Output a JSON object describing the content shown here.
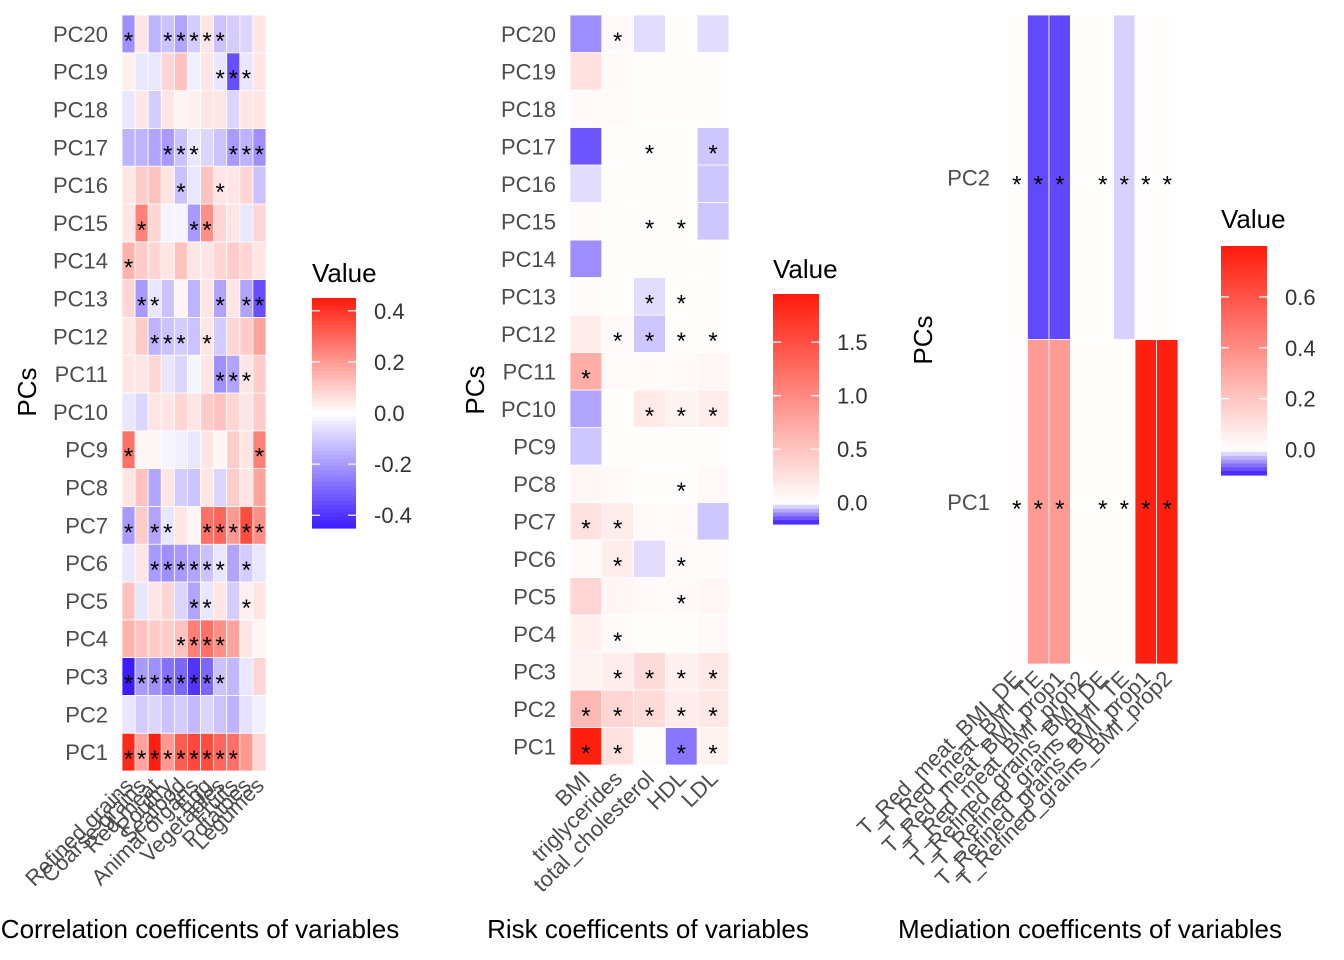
{
  "colors": {
    "low": "#3b1bff",
    "mid": "#ffffff",
    "high": "#ff1a0a",
    "tile_border": "#ffffff",
    "star": "#000000"
  },
  "chart_data": [
    {
      "type": "heatmap",
      "title": "",
      "xlabel": "Correlation coefficents of variables",
      "ylabel": "PCs",
      "x": [
        "Refined grains",
        "Coarse grains",
        "Red meat",
        "Poultry",
        "Seafood",
        "Animal organs",
        "Egg",
        "Vegetables",
        "Fruits",
        "Potatoes",
        "Legumes"
      ],
      "y": [
        "PC1",
        "PC2",
        "PC3",
        "PC4",
        "PC5",
        "PC6",
        "PC7",
        "PC8",
        "PC9",
        "PC10",
        "PC11",
        "PC12",
        "PC13",
        "PC14",
        "PC15",
        "PC16",
        "PC17",
        "PC18",
        "PC19",
        "PC20"
      ],
      "values": [
        [
          0.42,
          0.18,
          0.44,
          0.2,
          0.32,
          0.36,
          0.35,
          0.3,
          0.28,
          0.2,
          0.08
        ],
        [
          -0.05,
          -0.1,
          -0.08,
          -0.12,
          -0.1,
          -0.14,
          -0.08,
          -0.12,
          -0.15,
          -0.06,
          -0.03
        ],
        [
          -0.45,
          -0.2,
          -0.22,
          -0.28,
          -0.3,
          -0.4,
          -0.3,
          -0.12,
          -0.14,
          -0.05,
          0.08
        ],
        [
          0.15,
          0.12,
          0.1,
          0.1,
          0.12,
          0.25,
          0.28,
          0.22,
          0.18,
          0.05,
          0.02
        ],
        [
          0.12,
          -0.05,
          0.05,
          0.08,
          -0.08,
          -0.18,
          -0.05,
          0.05,
          -0.1,
          0.03,
          0.05
        ],
        [
          -0.05,
          0.05,
          -0.2,
          -0.22,
          -0.2,
          -0.18,
          -0.12,
          -0.05,
          -0.18,
          -0.1,
          -0.05
        ],
        [
          -0.2,
          0.1,
          -0.18,
          -0.05,
          0.05,
          0.02,
          0.28,
          0.3,
          0.2,
          0.35,
          0.22
        ],
        [
          0.05,
          0.12,
          -0.18,
          0.05,
          -0.1,
          -0.12,
          0.05,
          -0.08,
          0.1,
          0.05,
          0.18
        ],
        [
          0.28,
          0.02,
          0.02,
          -0.02,
          -0.03,
          -0.05,
          0.05,
          0.02,
          0.1,
          0.05,
          0.25
        ],
        [
          -0.05,
          -0.08,
          0.05,
          0.05,
          0.08,
          0.05,
          0.1,
          0.12,
          0.08,
          0.05,
          0.1
        ],
        [
          0.05,
          0.05,
          0.08,
          -0.05,
          -0.08,
          -0.02,
          0.05,
          -0.22,
          -0.18,
          0.05,
          0.1
        ],
        [
          0.05,
          0.1,
          -0.15,
          -0.12,
          -0.1,
          -0.12,
          0.05,
          -0.1,
          0.08,
          0.1,
          0.18
        ],
        [
          0.08,
          -0.2,
          -0.05,
          -0.12,
          0.02,
          -0.15,
          0.05,
          -0.18,
          0.05,
          -0.18,
          -0.35
        ],
        [
          0.15,
          0.1,
          0.08,
          0.05,
          0.12,
          0.05,
          0.05,
          0.08,
          0.1,
          0.08,
          0.05
        ],
        [
          0.05,
          0.25,
          0.08,
          -0.02,
          -0.02,
          -0.2,
          0.22,
          0.08,
          0.05,
          -0.05,
          0.08
        ],
        [
          0.05,
          0.1,
          0.12,
          0.05,
          -0.12,
          -0.05,
          0.12,
          0.05,
          0.05,
          0.08,
          -0.12
        ],
        [
          -0.15,
          -0.15,
          -0.18,
          -0.2,
          -0.12,
          -0.05,
          -0.08,
          -0.12,
          -0.2,
          -0.15,
          -0.22
        ],
        [
          -0.05,
          0.05,
          -0.1,
          0.05,
          0.02,
          0.03,
          0.05,
          0.05,
          -0.08,
          0.05,
          0.05
        ],
        [
          0.03,
          -0.05,
          -0.05,
          0.08,
          0.12,
          -0.03,
          0.05,
          -0.05,
          -0.35,
          -0.05,
          0.05
        ],
        [
          -0.22,
          0.05,
          -0.15,
          -0.12,
          -0.18,
          -0.1,
          0.05,
          -0.12,
          -0.1,
          -0.08,
          0.05
        ]
      ],
      "annotations": [
        [
          "*",
          "*",
          "*",
          "*",
          "*",
          "*",
          "*",
          "*",
          "*",
          "",
          ""
        ],
        [
          "",
          "",
          "",
          "",
          "",
          "",
          "",
          "",
          "",
          "",
          ""
        ],
        [
          "*",
          "*",
          "*",
          "*",
          "*",
          "*",
          "*",
          "*",
          "",
          "",
          ""
        ],
        [
          "",
          "",
          "",
          "",
          "*",
          "*",
          "*",
          "*",
          "",
          "",
          ""
        ],
        [
          "",
          "",
          "",
          "",
          "",
          "*",
          "*",
          "",
          "",
          "*",
          ""
        ],
        [
          "",
          "",
          "*",
          "*",
          "*",
          "*",
          "*",
          "*",
          "",
          "*",
          ""
        ],
        [
          "*",
          "",
          "*",
          "*",
          "",
          "",
          "*",
          "*",
          "*",
          "*",
          "*"
        ],
        [
          "",
          "",
          "",
          "",
          "",
          "",
          "",
          "",
          "",
          "",
          ""
        ],
        [
          "*",
          "",
          "",
          "",
          "",
          "",
          "",
          "",
          "",
          "",
          "*"
        ],
        [
          "",
          "",
          "",
          "",
          "",
          "",
          "",
          "",
          "",
          "",
          ""
        ],
        [
          "",
          "",
          "",
          "",
          "",
          "",
          "",
          "*",
          "*",
          "*",
          ""
        ],
        [
          "",
          "",
          "*",
          "*",
          "*",
          "",
          "*",
          "",
          "",
          "",
          ""
        ],
        [
          "",
          "*",
          "*",
          "",
          "",
          "",
          "",
          "*",
          "",
          "*",
          "*"
        ],
        [
          "*",
          "",
          "",
          "",
          "",
          "",
          "",
          "",
          "",
          "",
          ""
        ],
        [
          "",
          "*",
          "",
          "",
          "",
          "*",
          "*",
          "",
          "",
          "",
          ""
        ],
        [
          "",
          "",
          "",
          "",
          "*",
          "",
          "",
          "*",
          "",
          "",
          ""
        ],
        [
          "",
          "",
          "",
          "*",
          "*",
          "*",
          "",
          "",
          "*",
          "*",
          "*"
        ],
        [
          "",
          "",
          "",
          "",
          "",
          "",
          "",
          "",
          "",
          "",
          ""
        ],
        [
          "",
          "",
          "",
          "",
          "",
          "",
          "",
          "*",
          "*",
          "*",
          ""
        ],
        [
          "*",
          "",
          "",
          "*",
          "*",
          "*",
          "*",
          "*",
          "",
          "",
          ""
        ]
      ],
      "legend": {
        "title": "Value",
        "ticks": [
          0.4,
          0.2,
          0.0,
          -0.2,
          -0.4
        ],
        "tick_labels": [
          "0.4",
          "0.2",
          "0.0",
          "-0.2",
          "-0.4"
        ],
        "range": [
          -0.45,
          0.45
        ]
      }
    },
    {
      "type": "heatmap",
      "title": "",
      "xlabel": "Risk coefficents of variables",
      "ylabel": "PCs",
      "x": [
        "BMI",
        "triglycerides",
        "total_cholesterol",
        "HDL",
        "LDL"
      ],
      "y": [
        "PC1",
        "PC2",
        "PC3",
        "PC4",
        "PC5",
        "PC6",
        "PC7",
        "PC8",
        "PC9",
        "PC10",
        "PC11",
        "PC12",
        "PC13",
        "PC14",
        "PC15",
        "PC16",
        "PC17",
        "PC18",
        "PC19",
        "PC20"
      ],
      "values": [
        [
          1.9,
          0.25,
          0.02,
          -0.12,
          0.1
        ],
        [
          0.6,
          0.35,
          0.3,
          0.15,
          0.2
        ],
        [
          0.1,
          0.15,
          0.3,
          0.12,
          0.2
        ],
        [
          0.12,
          0.05,
          0.02,
          0.02,
          0.05
        ],
        [
          0.35,
          0.08,
          0.05,
          0.05,
          0.08
        ],
        [
          0.05,
          0.15,
          -0.03,
          0.05,
          0.03
        ],
        [
          0.25,
          0.15,
          0.05,
          0.05,
          -0.05
        ],
        [
          0.08,
          0.05,
          0.02,
          0.02,
          0.05
        ],
        [
          -0.05,
          0.02,
          0.02,
          0.02,
          0.02
        ],
        [
          -0.08,
          0.02,
          0.18,
          0.1,
          0.15
        ],
        [
          0.7,
          0.05,
          0.05,
          0.05,
          0.08
        ],
        [
          0.15,
          0.05,
          -0.05,
          0.02,
          0.02
        ],
        [
          0.03,
          0.02,
          -0.03,
          0.02,
          0.02
        ],
        [
          -0.1,
          0.02,
          0.02,
          0.02,
          0.02
        ],
        [
          0.03,
          0.02,
          0.02,
          0.02,
          -0.05
        ],
        [
          -0.03,
          0.02,
          0.02,
          0.02,
          -0.05
        ],
        [
          -0.15,
          0.02,
          0.02,
          0.02,
          -0.05
        ],
        [
          0.05,
          0.03,
          0.02,
          0.02,
          0.02
        ],
        [
          0.25,
          0.05,
          0.02,
          0.02,
          0.02
        ],
        [
          -0.1,
          0.05,
          -0.03,
          0.02,
          -0.03
        ]
      ],
      "annotations": [
        [
          "*",
          "*",
          "",
          "*",
          "*"
        ],
        [
          "*",
          "*",
          "*",
          "*",
          "*"
        ],
        [
          "",
          "*",
          "*",
          "*",
          "*"
        ],
        [
          "",
          "*",
          "",
          "",
          ""
        ],
        [
          "",
          "",
          "",
          "*",
          ""
        ],
        [
          "",
          "*",
          "",
          "*",
          ""
        ],
        [
          "*",
          "*",
          "",
          "",
          ""
        ],
        [
          "",
          "",
          "",
          "*",
          ""
        ],
        [
          "",
          "",
          "",
          "",
          ""
        ],
        [
          "",
          "",
          "*",
          "*",
          "*"
        ],
        [
          "*",
          "",
          "",
          "",
          ""
        ],
        [
          "",
          "*",
          "*",
          "*",
          "*"
        ],
        [
          "",
          "",
          "*",
          "*",
          ""
        ],
        [
          "",
          "",
          "",
          "",
          ""
        ],
        [
          "",
          "",
          "*",
          "*",
          ""
        ],
        [
          "",
          "",
          "",
          "",
          ""
        ],
        [
          "",
          "",
          "*",
          "",
          "*"
        ],
        [
          "",
          "",
          "",
          "",
          ""
        ],
        [
          "",
          "",
          "",
          "",
          ""
        ],
        [
          "",
          "*",
          "",
          "",
          ""
        ]
      ],
      "legend": {
        "title": "Value",
        "ticks": [
          1.5,
          1.0,
          0.5,
          0.0
        ],
        "tick_labels": [
          "1.5",
          "1.0",
          "0.5",
          "0.0"
        ],
        "range": [
          -0.2,
          1.95
        ]
      }
    },
    {
      "type": "heatmap",
      "title": "",
      "xlabel": "Mediation coefficents of variables",
      "ylabel": "PCs",
      "x": [
        "T_Red_meat_BMI_DE",
        "T_Red_meat_BMI_TE",
        "T_Red_meat_BMI_prop1",
        "T_Red_meat_BMI_prop2",
        "T_Refined_grains_BMI_DE",
        "T_Refined_grains_BMI_TE",
        "T_Refined_grains_BMI_prop1",
        "T_Refined_grains_BMI_prop2"
      ],
      "y": [
        "PC1",
        "PC2"
      ],
      "values": [
        [
          0.01,
          0.35,
          0.35,
          0.01,
          0.01,
          0.01,
          0.78,
          0.78
        ],
        [
          0.01,
          -0.08,
          -0.08,
          0.01,
          0.01,
          -0.02,
          0.01,
          0.01
        ]
      ],
      "annotations": [
        [
          "*",
          "*",
          "*",
          "",
          "*",
          "*",
          "*",
          "*"
        ],
        [
          "*",
          "*",
          "*",
          "",
          "*",
          "*",
          "*",
          "*"
        ]
      ],
      "legend": {
        "title": "Value",
        "ticks": [
          0.6,
          0.4,
          0.2,
          0.0
        ],
        "tick_labels": [
          "0.6",
          "0.4",
          "0.2",
          "0.0"
        ],
        "range": [
          -0.1,
          0.8
        ]
      }
    }
  ]
}
